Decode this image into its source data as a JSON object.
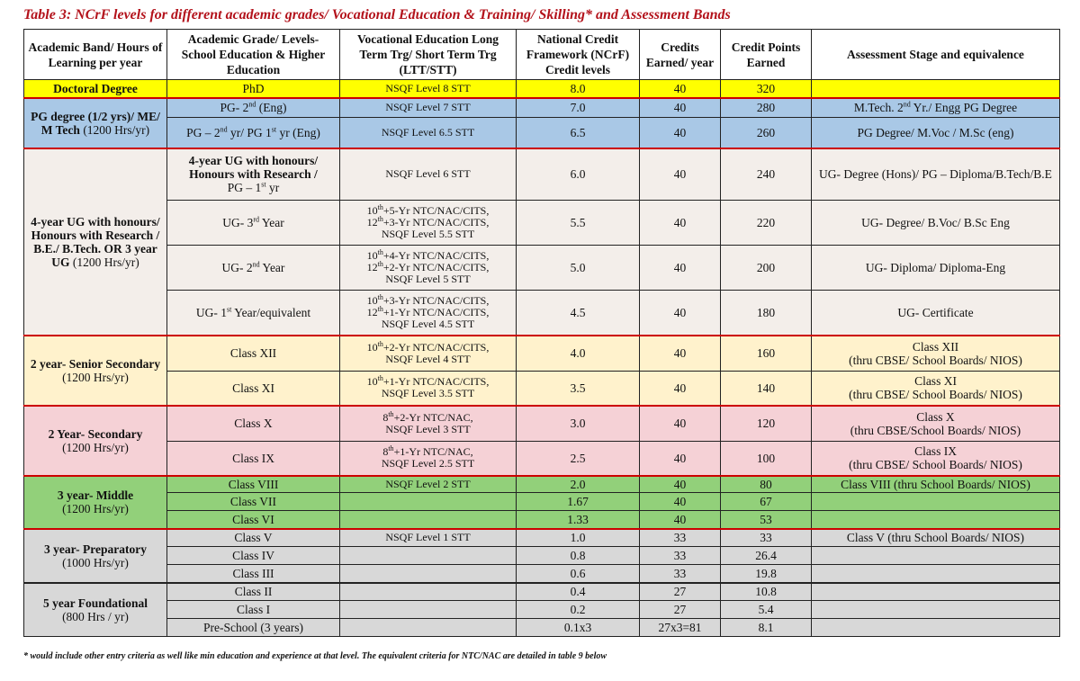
{
  "title": "Table 3: NCrF levels for different academic grades/ Vocational Education & Training/ Skilling* and Assessment Bands",
  "headers": {
    "band": "Academic Band/ Hours of Learning per year",
    "grade": "Academic Grade/ Levels- School Education & Higher Education",
    "voc": "Vocational Education Long Term Trg/ Short Term Trg (LTT/STT)",
    "ncrf": "National Credit Framework (NCrF) Credit levels",
    "credits": "Credits Earned/ year",
    "points": "Credit Points Earned",
    "assess": "Assessment Stage and equivalence"
  },
  "bands": {
    "doctoral": "Doctoral Degree",
    "pg_bold": "PG degree (1/2 yrs)/ ME/ M Tech",
    "pg_normal": " (1200 Hrs/yr)",
    "ug_bold": "4-year UG with honours/ Honours with Research / B.E./ B.Tech. OR 3 year UG",
    "ug_normal": " (1200 Hrs/yr)",
    "senior_bold": "2 year- Senior Secondary",
    "senior_normal": " (1200 Hrs/yr)",
    "secondary_bold": "2 Year- Secondary",
    "secondary_normal": "(1200 Hrs/yr)",
    "middle_bold": "3 year- Middle",
    "middle_normal": "(1200 Hrs/yr)",
    "prep_bold": "3 year- Preparatory",
    "prep_normal": "(1000 Hrs/yr)",
    "found_bold": "5 year Foundational",
    "found_normal": "(800 Hrs / yr)"
  },
  "rows": {
    "phd": {
      "grade": "PhD",
      "voc": "NSQF Level 8 STT",
      "ncrf": "8.0",
      "credits": "40",
      "points": "320",
      "assess": ""
    },
    "pg2": {
      "grade_a": "PG- 2",
      "grade_sup": "nd",
      "grade_b": " (Eng)",
      "voc": "NSQF Level 7 STT",
      "ncrf": "7.0",
      "credits": "40",
      "points": "280",
      "assess_a": "M.Tech. 2",
      "assess_sup": "nd",
      "assess_b": " Yr./ Engg PG Degree"
    },
    "pg1": {
      "grade_a": "PG – 2",
      "grade_sup1": "nd",
      "grade_b": " yr/ PG 1",
      "grade_sup2": "st",
      "grade_c": " yr (Eng)",
      "voc": "NSQF Level 6.5 STT",
      "ncrf": "6.5",
      "credits": "40",
      "points": "260",
      "assess": "PG Degree/ M.Voc / M.Sc (eng)"
    },
    "ug4": {
      "grade_bold": "4-year UG with honours/ Honours with Research /",
      "grade_a": "PG – 1",
      "grade_sup": "st",
      "grade_b": " yr",
      "voc": "NSQF Level 6 STT",
      "ncrf": "6.0",
      "credits": "40",
      "points": "240",
      "assess": "UG- Degree (Hons)/ PG – Diploma/B.Tech/B.E"
    },
    "ug3": {
      "grade_a": "UG- 3",
      "grade_sup": "rd",
      "grade_b": " Year",
      "voc1_a": "10",
      "voc1_sup": "th",
      "voc1_b": "+5-Yr NTC/NAC/CITS,",
      "voc2_a": "12",
      "voc2_sup": "th",
      "voc2_b": "+3-Yr NTC/NAC/CITS,",
      "voc3": "NSQF Level 5.5 STT",
      "ncrf": "5.5",
      "credits": "40",
      "points": "220",
      "assess": "UG- Degree/ B.Voc/ B.Sc Eng"
    },
    "ug2": {
      "grade_a": "UG- 2",
      "grade_sup": "nd",
      "grade_b": " Year",
      "voc1_a": "10",
      "voc1_sup": "th",
      "voc1_b": "+4-Yr NTC/NAC/CITS,",
      "voc2_a": "12",
      "voc2_sup": "th",
      "voc2_b": "+2-Yr NTC/NAC/CITS,",
      "voc3": "NSQF Level 5 STT",
      "ncrf": "5.0",
      "credits": "40",
      "points": "200",
      "assess": "UG- Diploma/ Diploma-Eng"
    },
    "ug1": {
      "grade_a": "UG- 1",
      "grade_sup": "st",
      "grade_b": " Year/equivalent",
      "voc1_a": "10",
      "voc1_sup": "th",
      "voc1_b": "+3-Yr NTC/NAC/CITS,",
      "voc2_a": "12",
      "voc2_sup": "th",
      "voc2_b": "+1-Yr NTC/NAC/CITS,",
      "voc3": "NSQF Level 4.5 STT",
      "ncrf": "4.5",
      "credits": "40",
      "points": "180",
      "assess": "UG- Certificate"
    },
    "c12": {
      "grade": "Class XII",
      "voc1_a": "10",
      "voc1_sup": "th",
      "voc1_b": "+2-Yr NTC/NAC/CITS,",
      "voc2": "NSQF Level 4 STT",
      "ncrf": "4.0",
      "credits": "40",
      "points": "160",
      "assess1": "Class XII",
      "assess2": "(thru CBSE/ School Boards/ NIOS)"
    },
    "c11": {
      "grade": "Class XI",
      "voc1_a": "10",
      "voc1_sup": "th",
      "voc1_b": "+1-Yr NTC/NAC/CITS,",
      "voc2": "NSQF Level 3.5 STT",
      "ncrf": "3.5",
      "credits": "40",
      "points": "140",
      "assess1": "Class XI",
      "assess2": "(thru CBSE/ School Boards/ NIOS)"
    },
    "c10": {
      "grade": "Class X",
      "voc1_a": "8",
      "voc1_sup": "th",
      "voc1_b": "+2-Yr NTC/NAC,",
      "voc2": "NSQF Level 3 STT",
      "ncrf": "3.0",
      "credits": "40",
      "points": "120",
      "assess1": "Class X",
      "assess2": "(thru CBSE/School Boards/ NIOS)"
    },
    "c9": {
      "grade": "Class IX",
      "voc1_a": "8",
      "voc1_sup": "th",
      "voc1_b": "+1-Yr NTC/NAC,",
      "voc2": "NSQF Level 2.5 STT",
      "ncrf": "2.5",
      "credits": "40",
      "points": "100",
      "assess1": "Class IX",
      "assess2": "(thru CBSE/ School Boards/ NIOS)"
    },
    "c8": {
      "grade": "Class VIII",
      "voc": "NSQF Level 2 STT",
      "ncrf": "2.0",
      "credits": "40",
      "points": "80",
      "assess": "Class VIII (thru School Boards/ NIOS)"
    },
    "c7": {
      "grade": "Class VII",
      "voc": "",
      "ncrf": "1.67",
      "credits": "40",
      "points": "67",
      "assess": ""
    },
    "c6": {
      "grade": "Class VI",
      "voc": "",
      "ncrf": "1.33",
      "credits": "40",
      "points": "53",
      "assess": ""
    },
    "c5": {
      "grade": "Class V",
      "voc": "NSQF Level 1 STT",
      "ncrf": "1.0",
      "credits": "33",
      "points": "33",
      "assess": "Class V (thru School Boards/ NIOS)"
    },
    "c4": {
      "grade": "Class IV",
      "voc": "",
      "ncrf": "0.8",
      "credits": "33",
      "points": "26.4",
      "assess": ""
    },
    "c3": {
      "grade": "Class III",
      "voc": "",
      "ncrf": "0.6",
      "credits": "33",
      "points": "19.8",
      "assess": ""
    },
    "c2": {
      "grade": "Class II",
      "voc": "",
      "ncrf": "0.4",
      "credits": "27",
      "points": "10.8",
      "assess": ""
    },
    "c1": {
      "grade": "Class I",
      "voc": "",
      "ncrf": "0.2",
      "credits": "27",
      "points": "5.4",
      "assess": ""
    },
    "pre": {
      "grade": "Pre-School (3 years)",
      "voc": "",
      "ncrf": "0.1x3",
      "credits": "27x3=81",
      "points": "8.1",
      "assess": ""
    }
  },
  "footnote": "* would include other entry criteria as well like min education and experience at that level. The equivalent criteria for NTC/NAC are detailed in table 9 below",
  "colors": {
    "title": "#b3121b",
    "separator": "#cc0000",
    "doctoral": "#ffff00",
    "pg": "#a9c8e6",
    "ug": "#f3eeea",
    "senior": "#fff2cc",
    "secondary": "#f5d1d6",
    "middle": "#92d07a",
    "prep": "#d8d8d8"
  }
}
